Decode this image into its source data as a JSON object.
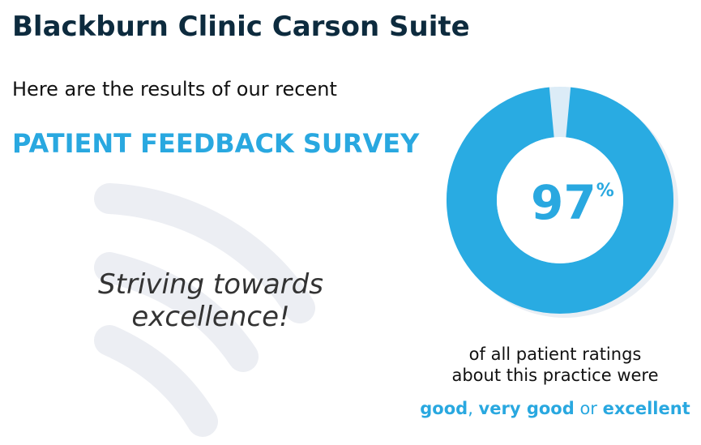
{
  "header": {
    "title": "Blackburn Clinic Carson Suite",
    "intro": "Here are the results of our recent",
    "survey": "PATIENT FEEDBACK SURVEY"
  },
  "slogan": [
    "Striving towards",
    "excellence!"
  ],
  "rating": {
    "type": "donut",
    "value": 97,
    "unit": "%",
    "range": [
      0,
      100
    ]
  },
  "caption": {
    "lines": [
      "of all patient ratings",
      "about this practice were"
    ],
    "answers": [
      "good",
      ", ",
      "very good",
      " or ",
      "excellent"
    ]
  }
}
